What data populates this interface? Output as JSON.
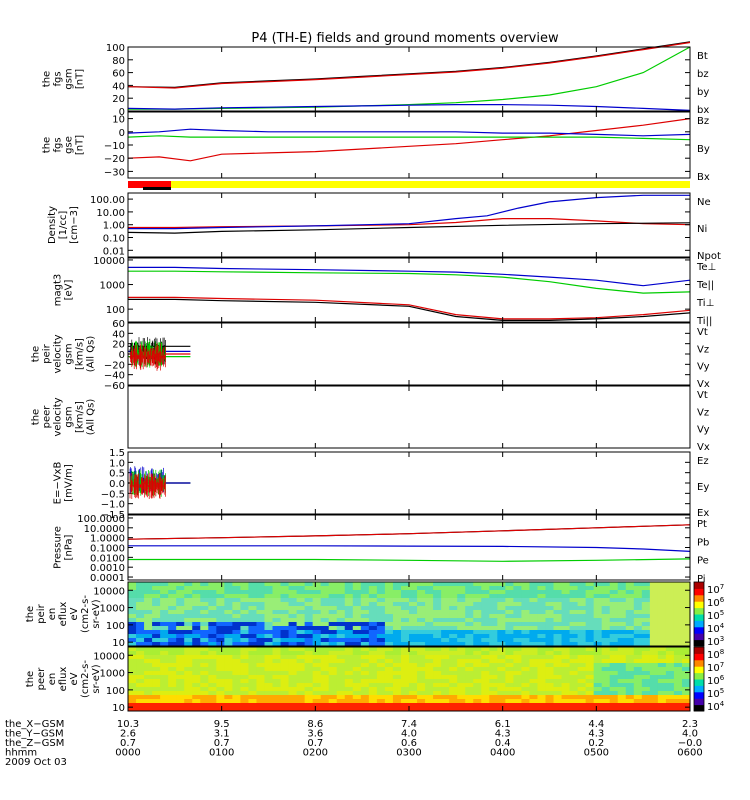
{
  "title": "P4 (TH-E) fields and ground moments overview",
  "chart_data": [
    {
      "type": "line",
      "id": "fgs_gsm",
      "ylabel": [
        "the",
        "fgs",
        "gsm",
        "[nT]"
      ],
      "ylim": [
        0,
        100
      ],
      "ticks": [
        "100",
        "80",
        "60",
        "40",
        "20",
        "0"
      ],
      "tick_values": [
        100,
        80,
        60,
        40,
        20,
        0
      ],
      "series": [
        {
          "name": "Bt",
          "color": "#000000",
          "x": [
            0,
            30,
            60,
            90,
            120,
            150,
            180,
            210,
            240,
            270,
            300,
            330,
            360
          ],
          "values": [
            38,
            37,
            44,
            47,
            50,
            54,
            58,
            62,
            68,
            76,
            86,
            97,
            108
          ]
        },
        {
          "name": "bz",
          "color": "#dd0000",
          "x": [
            0,
            30,
            60,
            90,
            120,
            150,
            180,
            210,
            240,
            270,
            300,
            330,
            360
          ],
          "values": [
            38,
            36,
            43,
            46,
            49,
            53,
            57,
            61,
            67,
            75,
            85,
            96,
            107
          ]
        },
        {
          "name": "by",
          "color": "#00cc00",
          "x": [
            0,
            30,
            60,
            90,
            120,
            150,
            180,
            210,
            240,
            270,
            300,
            330,
            360
          ],
          "values": [
            3,
            3,
            4,
            5,
            6,
            8,
            10,
            13,
            18,
            25,
            38,
            60,
            100
          ]
        },
        {
          "name": "bx",
          "color": "#0000cc",
          "x": [
            0,
            30,
            60,
            90,
            120,
            150,
            180,
            210,
            240,
            270,
            300,
            330,
            360
          ],
          "values": [
            4,
            3,
            5,
            6,
            7,
            8,
            9,
            10,
            10,
            9,
            7,
            4,
            1
          ]
        }
      ]
    },
    {
      "type": "line",
      "id": "fgs_gse",
      "ylabel": [
        "the",
        "fgs",
        "gse",
        "[nT]"
      ],
      "ylim": [
        -35,
        15
      ],
      "ticks": [
        "10",
        "0",
        "−10",
        "−20",
        "−30"
      ],
      "tick_values": [
        10,
        0,
        -10,
        -20,
        -30
      ],
      "series": [
        {
          "name": "Bz",
          "color": "#dd0000",
          "x": [
            0,
            20,
            40,
            60,
            90,
            120,
            150,
            180,
            210,
            240,
            270,
            300,
            330,
            360
          ],
          "values": [
            -20,
            -19,
            -22,
            -17,
            -16,
            -15,
            -13,
            -11,
            -9,
            -6,
            -3,
            1,
            5,
            10
          ]
        },
        {
          "name": "By",
          "color": "#00cc00",
          "x": [
            0,
            20,
            40,
            60,
            90,
            120,
            150,
            180,
            210,
            240,
            270,
            300,
            330,
            360
          ],
          "values": [
            -4,
            -3,
            -4,
            -4,
            -4,
            -4,
            -4,
            -4,
            -4,
            -4,
            -4,
            -4,
            -5,
            -6
          ]
        },
        {
          "name": "Bx",
          "color": "#0000cc",
          "x": [
            0,
            20,
            40,
            60,
            90,
            120,
            150,
            180,
            210,
            240,
            270,
            300,
            330,
            360
          ],
          "values": [
            -1,
            0,
            2,
            1,
            0,
            0,
            0,
            0,
            0,
            -1,
            -1,
            -2,
            -3,
            -2
          ]
        }
      ]
    },
    {
      "type": "line",
      "id": "density",
      "ylabel": [
        "Density",
        "[1/cc]",
        "[cm−3]"
      ],
      "log": true,
      "ylim": [
        0.003,
        300
      ],
      "ticks": [
        "100.00",
        "10.00",
        "1.00",
        "0.10",
        "0.01"
      ],
      "tick_values": [
        100,
        10,
        1,
        0.1,
        0.01
      ],
      "series": [
        {
          "name": "Ne",
          "color": "#dd0000",
          "x": [
            0,
            30,
            60,
            120,
            180,
            210,
            240,
            270,
            300,
            330,
            360
          ],
          "values": [
            0.6,
            0.6,
            0.7,
            0.8,
            1.0,
            1.5,
            3,
            3,
            2,
            1.2,
            1.0
          ]
        },
        {
          "name": "Ni",
          "color": "#000000",
          "x": [
            0,
            30,
            60,
            120,
            180,
            240,
            300,
            360
          ],
          "values": [
            0.25,
            0.22,
            0.3,
            0.4,
            0.6,
            0.9,
            1.2,
            1.4
          ]
        },
        {
          "name": "Npot",
          "color": "#0000cc",
          "x": [
            0,
            30,
            60,
            120,
            180,
            210,
            230,
            250,
            270,
            300,
            330,
            360
          ],
          "values": [
            0.5,
            0.5,
            0.6,
            0.8,
            1.2,
            3,
            5,
            20,
            60,
            130,
            200,
            200
          ]
        }
      ]
    },
    {
      "type": "line",
      "id": "magt3",
      "ylabel": [
        "magt3",
        "[eV]"
      ],
      "log": true,
      "ylim": [
        30,
        12000
      ],
      "ticks": [
        "10000",
        "1000",
        "100"
      ],
      "tick_values": [
        10000,
        1000,
        100
      ],
      "series": [
        {
          "name": "Te⊥",
          "color": "#dd0000",
          "x": [
            0,
            30,
            60,
            120,
            180,
            210,
            240,
            270,
            300,
            330,
            360
          ],
          "values": [
            300,
            300,
            270,
            230,
            150,
            60,
            40,
            40,
            45,
            60,
            90
          ]
        },
        {
          "name": "Te||",
          "color": "#000000",
          "x": [
            0,
            30,
            60,
            120,
            180,
            210,
            240,
            270,
            300,
            330,
            360
          ],
          "values": [
            250,
            250,
            220,
            190,
            130,
            50,
            35,
            35,
            40,
            50,
            70
          ]
        },
        {
          "name": "Ti⊥",
          "color": "#0000cc",
          "x": [
            0,
            30,
            60,
            120,
            180,
            210,
            240,
            270,
            300,
            330,
            360
          ],
          "values": [
            5000,
            5000,
            4500,
            4000,
            3500,
            3200,
            2600,
            2000,
            1500,
            900,
            1500
          ]
        },
        {
          "name": "Ti||",
          "color": "#00cc00",
          "x": [
            0,
            30,
            60,
            120,
            180,
            210,
            240,
            270,
            300,
            330,
            360
          ],
          "values": [
            3500,
            3500,
            3300,
            3000,
            2800,
            2500,
            2000,
            1300,
            700,
            450,
            500
          ]
        }
      ]
    },
    {
      "type": "line",
      "id": "peir_velocity",
      "ylabel": [
        "the",
        "peir",
        "velocity",
        "gsm",
        "[km/s]",
        "(All Qs)"
      ],
      "ylim": [
        -60,
        60
      ],
      "ticks": [
        "60",
        "40",
        "20",
        "0",
        "−20",
        "−40",
        "−60"
      ],
      "tick_values": [
        60,
        40,
        20,
        0,
        -20,
        -40,
        -60
      ],
      "series": [
        {
          "name": "Vt",
          "color": "#000000",
          "x": [
            0,
            40
          ],
          "values": [
            15,
            15
          ]
        },
        {
          "name": "Vz",
          "color": "#dd0000",
          "x": [
            0,
            40
          ],
          "values": [
            0,
            0
          ]
        },
        {
          "name": "Vy",
          "color": "#00cc00",
          "x": [
            0,
            40
          ],
          "values": [
            -5,
            -5
          ]
        },
        {
          "name": "Vx",
          "color": "#0000cc",
          "x": [
            0,
            40
          ],
          "values": [
            5,
            5
          ]
        }
      ]
    },
    {
      "type": "line",
      "id": "peer_velocity",
      "ylabel": [
        "the",
        "peer",
        "velocity",
        "gsm",
        "[km/s]",
        "(All Qs)"
      ],
      "ylim": [
        -60,
        60
      ],
      "ticks": [],
      "tick_values": [],
      "series": [
        {
          "name": "Vt",
          "color": "#000000",
          "x": [],
          "values": []
        },
        {
          "name": "Vz",
          "color": "#dd0000",
          "x": [],
          "values": []
        },
        {
          "name": "Vy",
          "color": "#00cc00",
          "x": [],
          "values": []
        },
        {
          "name": "Vx",
          "color": "#0000cc",
          "x": [],
          "values": []
        }
      ]
    },
    {
      "type": "line",
      "id": "efield",
      "ylabel": [
        "E=−VxB",
        "[mV/m]"
      ],
      "ylim": [
        -1.5,
        1.5
      ],
      "ticks": [
        "1.5",
        "1.0",
        "0.5",
        "0.0",
        "−0.5",
        "−1.0",
        "−1.5"
      ],
      "tick_values": [
        1.5,
        1.0,
        0.5,
        0.0,
        -0.5,
        -1.0,
        -1.5
      ],
      "series": [
        {
          "name": "Ez",
          "color": "#dd0000",
          "x": [
            0,
            40
          ],
          "values": [
            0,
            0
          ]
        },
        {
          "name": "Ey",
          "color": "#00cc00",
          "x": [
            0,
            40
          ],
          "values": [
            0,
            0
          ]
        },
        {
          "name": "Ex",
          "color": "#0000cc",
          "x": [
            0,
            40
          ],
          "values": [
            0,
            0
          ]
        }
      ]
    },
    {
      "type": "line",
      "id": "pressure",
      "ylabel": [
        "Pressure",
        "[nPa]"
      ],
      "log": true,
      "ylim": [
        5e-05,
        200
      ],
      "ticks": [
        "100.0000",
        "10.0000",
        "1.0000",
        "0.1000",
        "0.0100",
        "0.0010",
        "0.0001"
      ],
      "tick_values": [
        100,
        10,
        1,
        0.1,
        0.01,
        0.001,
        0.0001
      ],
      "series": [
        {
          "name": "Pt",
          "color": "#000000",
          "x": [
            0,
            60,
            120,
            180,
            240,
            300,
            360
          ],
          "values": [
            0.7,
            1.0,
            1.5,
            2.5,
            5,
            10,
            20
          ]
        },
        {
          "name": "Pb",
          "color": "#dd0000",
          "x": [
            0,
            60,
            120,
            180,
            240,
            300,
            360
          ],
          "values": [
            0.7,
            1.0,
            1.5,
            2.5,
            5,
            10,
            20
          ]
        },
        {
          "name": "Pe",
          "color": "#00cc00",
          "x": [
            0,
            60,
            120,
            180,
            240,
            300,
            360
          ],
          "values": [
            0.006,
            0.006,
            0.006,
            0.005,
            0.004,
            0.005,
            0.007
          ]
        },
        {
          "name": "Pi",
          "color": "#0000cc",
          "x": [
            0,
            60,
            120,
            180,
            240,
            300,
            330,
            360
          ],
          "values": [
            0.15,
            0.15,
            0.15,
            0.14,
            0.13,
            0.1,
            0.07,
            0.04
          ]
        }
      ]
    },
    {
      "type": "heatmap",
      "id": "peir_eflux",
      "ylabel": [
        "the",
        "peir",
        "en",
        "eflux",
        "eV",
        "(cm2-s-",
        "sr-eV)"
      ],
      "log": true,
      "ylim": [
        6,
        30000
      ],
      "ticks": [
        "10000",
        "1000",
        "100",
        "10"
      ],
      "tick_values": [
        10000,
        1000,
        100,
        10
      ],
      "colorbar_ticks": [
        "10",
        "10",
        "10",
        "10",
        "10"
      ],
      "colorbar_exps": [
        "7",
        "6",
        "5",
        "4",
        "3"
      ]
    },
    {
      "type": "heatmap",
      "id": "peer_eflux",
      "ylabel": [
        "the",
        "peer",
        "en",
        "eflux",
        "eV",
        "(cm2-s-",
        "sr-eV)"
      ],
      "log": true,
      "ylim": [
        6,
        30000
      ],
      "ticks": [
        "10000",
        "1000",
        "100",
        "10"
      ],
      "tick_values": [
        10000,
        1000,
        100,
        10
      ],
      "colorbar_ticks": [
        "10",
        "10",
        "10",
        "10",
        "10"
      ],
      "colorbar_exps": [
        "8",
        "7",
        "6",
        "5",
        "4"
      ]
    }
  ],
  "x_axis": {
    "rows": [
      {
        "label": "the_X−GSM",
        "values": [
          "10.3",
          "9.5",
          "8.6",
          "7.4",
          "6.1",
          "4.4",
          "2.3"
        ]
      },
      {
        "label": "the_Y−GSM",
        "values": [
          "2.6",
          "3.1",
          "3.6",
          "4.0",
          "4.3",
          "4.3",
          "4.0"
        ]
      },
      {
        "label": "the_Z−GSM",
        "values": [
          "0.7",
          "0.7",
          "0.7",
          "0.6",
          "0.4",
          "0.2",
          "−0.0"
        ]
      },
      {
        "label": "hhmm",
        "values": [
          "0000",
          "0100",
          "0200",
          "0300",
          "0400",
          "0500",
          "0600"
        ]
      }
    ],
    "date": "2009 Oct 03"
  }
}
